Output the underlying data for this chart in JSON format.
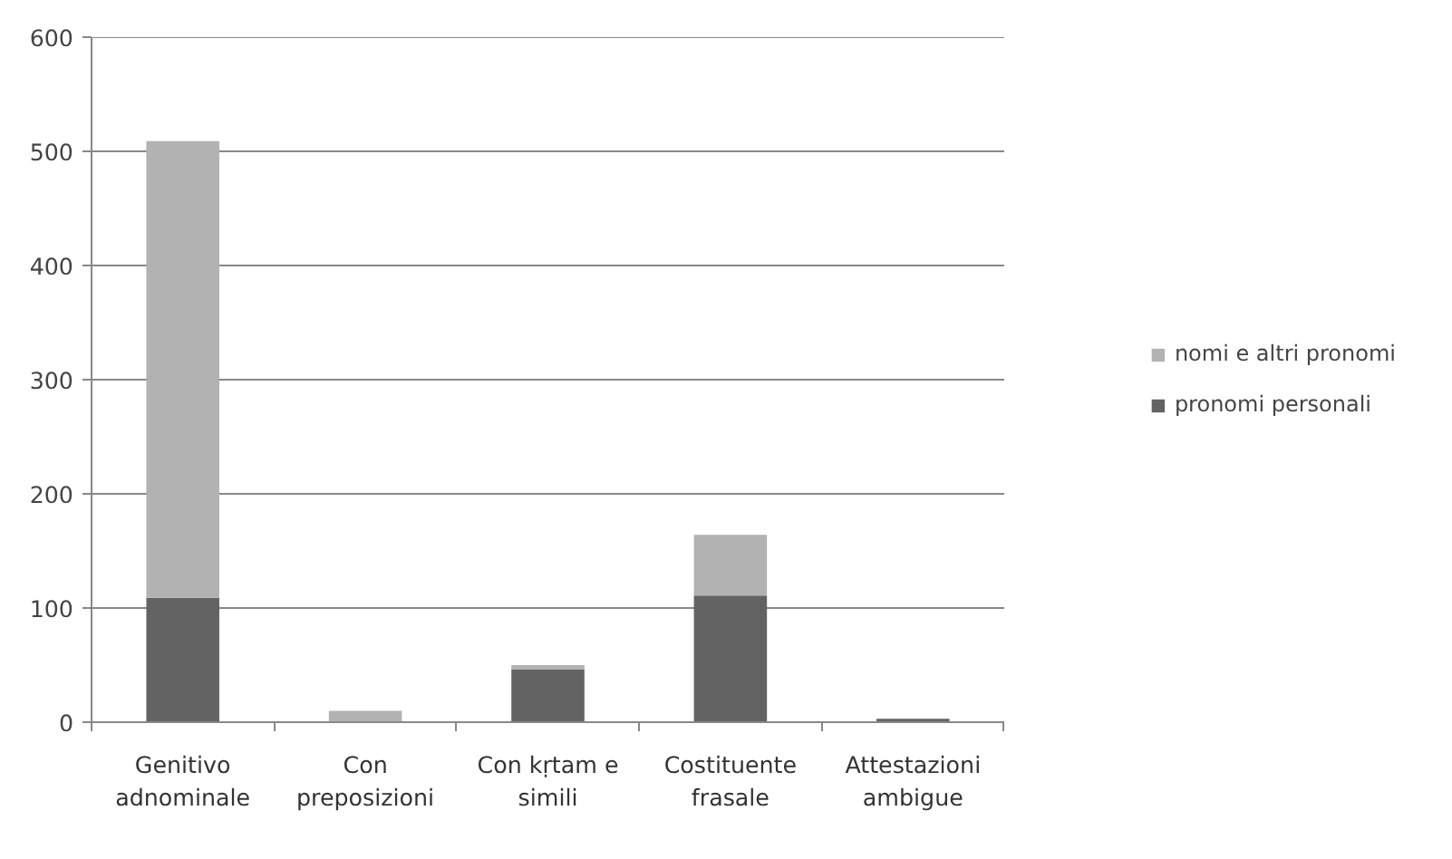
{
  "chart_data": {
    "type": "bar",
    "stacked": true,
    "categories": [
      "Genitivo adnominale",
      "Con preposizioni",
      "Con kṛtam e simili",
      "Costituente frasale",
      "Attestazioni ambigue"
    ],
    "series": [
      {
        "name": "pronomi personali",
        "color": "#636363",
        "values": [
          109,
          0,
          46,
          111,
          3
        ]
      },
      {
        "name": "nomi e altri pronomi",
        "color": "#b2b2b2",
        "values": [
          400,
          10,
          4,
          53,
          0
        ]
      }
    ],
    "ylim": [
      0,
      600
    ],
    "yticks": [
      0,
      100,
      200,
      300,
      400,
      500,
      600
    ],
    "grid": "y",
    "legend": "right"
  }
}
